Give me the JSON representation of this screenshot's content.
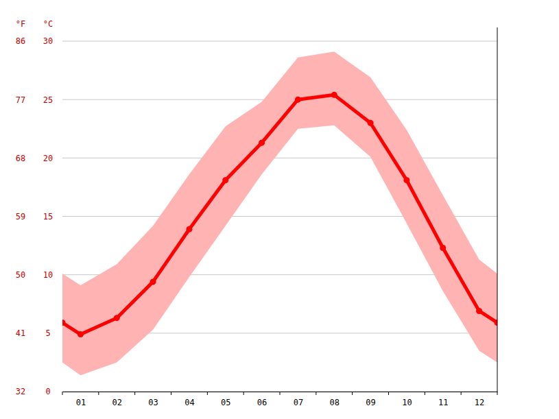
{
  "chart_data": {
    "type": "line",
    "ylabel": "°C",
    "y2label": "°F",
    "x": [
      0.5,
      1,
      2,
      3,
      4,
      5,
      6,
      7,
      8,
      9,
      10,
      11,
      12,
      12.5
    ],
    "xlim": [
      0.5,
      12.5
    ],
    "xticks": [
      {
        "value": 1,
        "label": "01"
      },
      {
        "value": 2,
        "label": "02"
      },
      {
        "value": 3,
        "label": "03"
      },
      {
        "value": 4,
        "label": "04"
      },
      {
        "value": 5,
        "label": "05"
      },
      {
        "value": 6,
        "label": "06"
      },
      {
        "value": 7,
        "label": "07"
      },
      {
        "value": 8,
        "label": "08"
      },
      {
        "value": 9,
        "label": "09"
      },
      {
        "value": 10,
        "label": "10"
      },
      {
        "value": 11,
        "label": "11"
      },
      {
        "value": 12,
        "label": "12"
      }
    ],
    "ylim": [
      0,
      30
    ],
    "yticks": [
      0,
      5,
      10,
      15,
      20,
      25,
      30
    ],
    "y2lim": [
      32,
      86
    ],
    "y2ticks": [
      32,
      41,
      50,
      59,
      68,
      77,
      86
    ],
    "grid": true,
    "series": [
      {
        "type": "area",
        "color": "#ffb3b3",
        "low": [
          2.5,
          1.4,
          2.5,
          5.3,
          9.8,
          14.2,
          18.6,
          22.5,
          22.8,
          20.1,
          14.4,
          8.6,
          3.5,
          2.5
        ],
        "high": [
          10.1,
          9.1,
          10.9,
          14.2,
          18.6,
          22.7,
          24.8,
          28.6,
          29.1,
          26.9,
          22.4,
          16.8,
          11.3,
          10.1
        ]
      },
      {
        "type": "line",
        "color": "#ff0000",
        "marker": "circle",
        "values": [
          5.9,
          4.9,
          6.3,
          9.4,
          13.9,
          18.1,
          21.3,
          25.0,
          25.4,
          23.0,
          18.1,
          12.3,
          6.9,
          5.9
        ]
      }
    ]
  }
}
